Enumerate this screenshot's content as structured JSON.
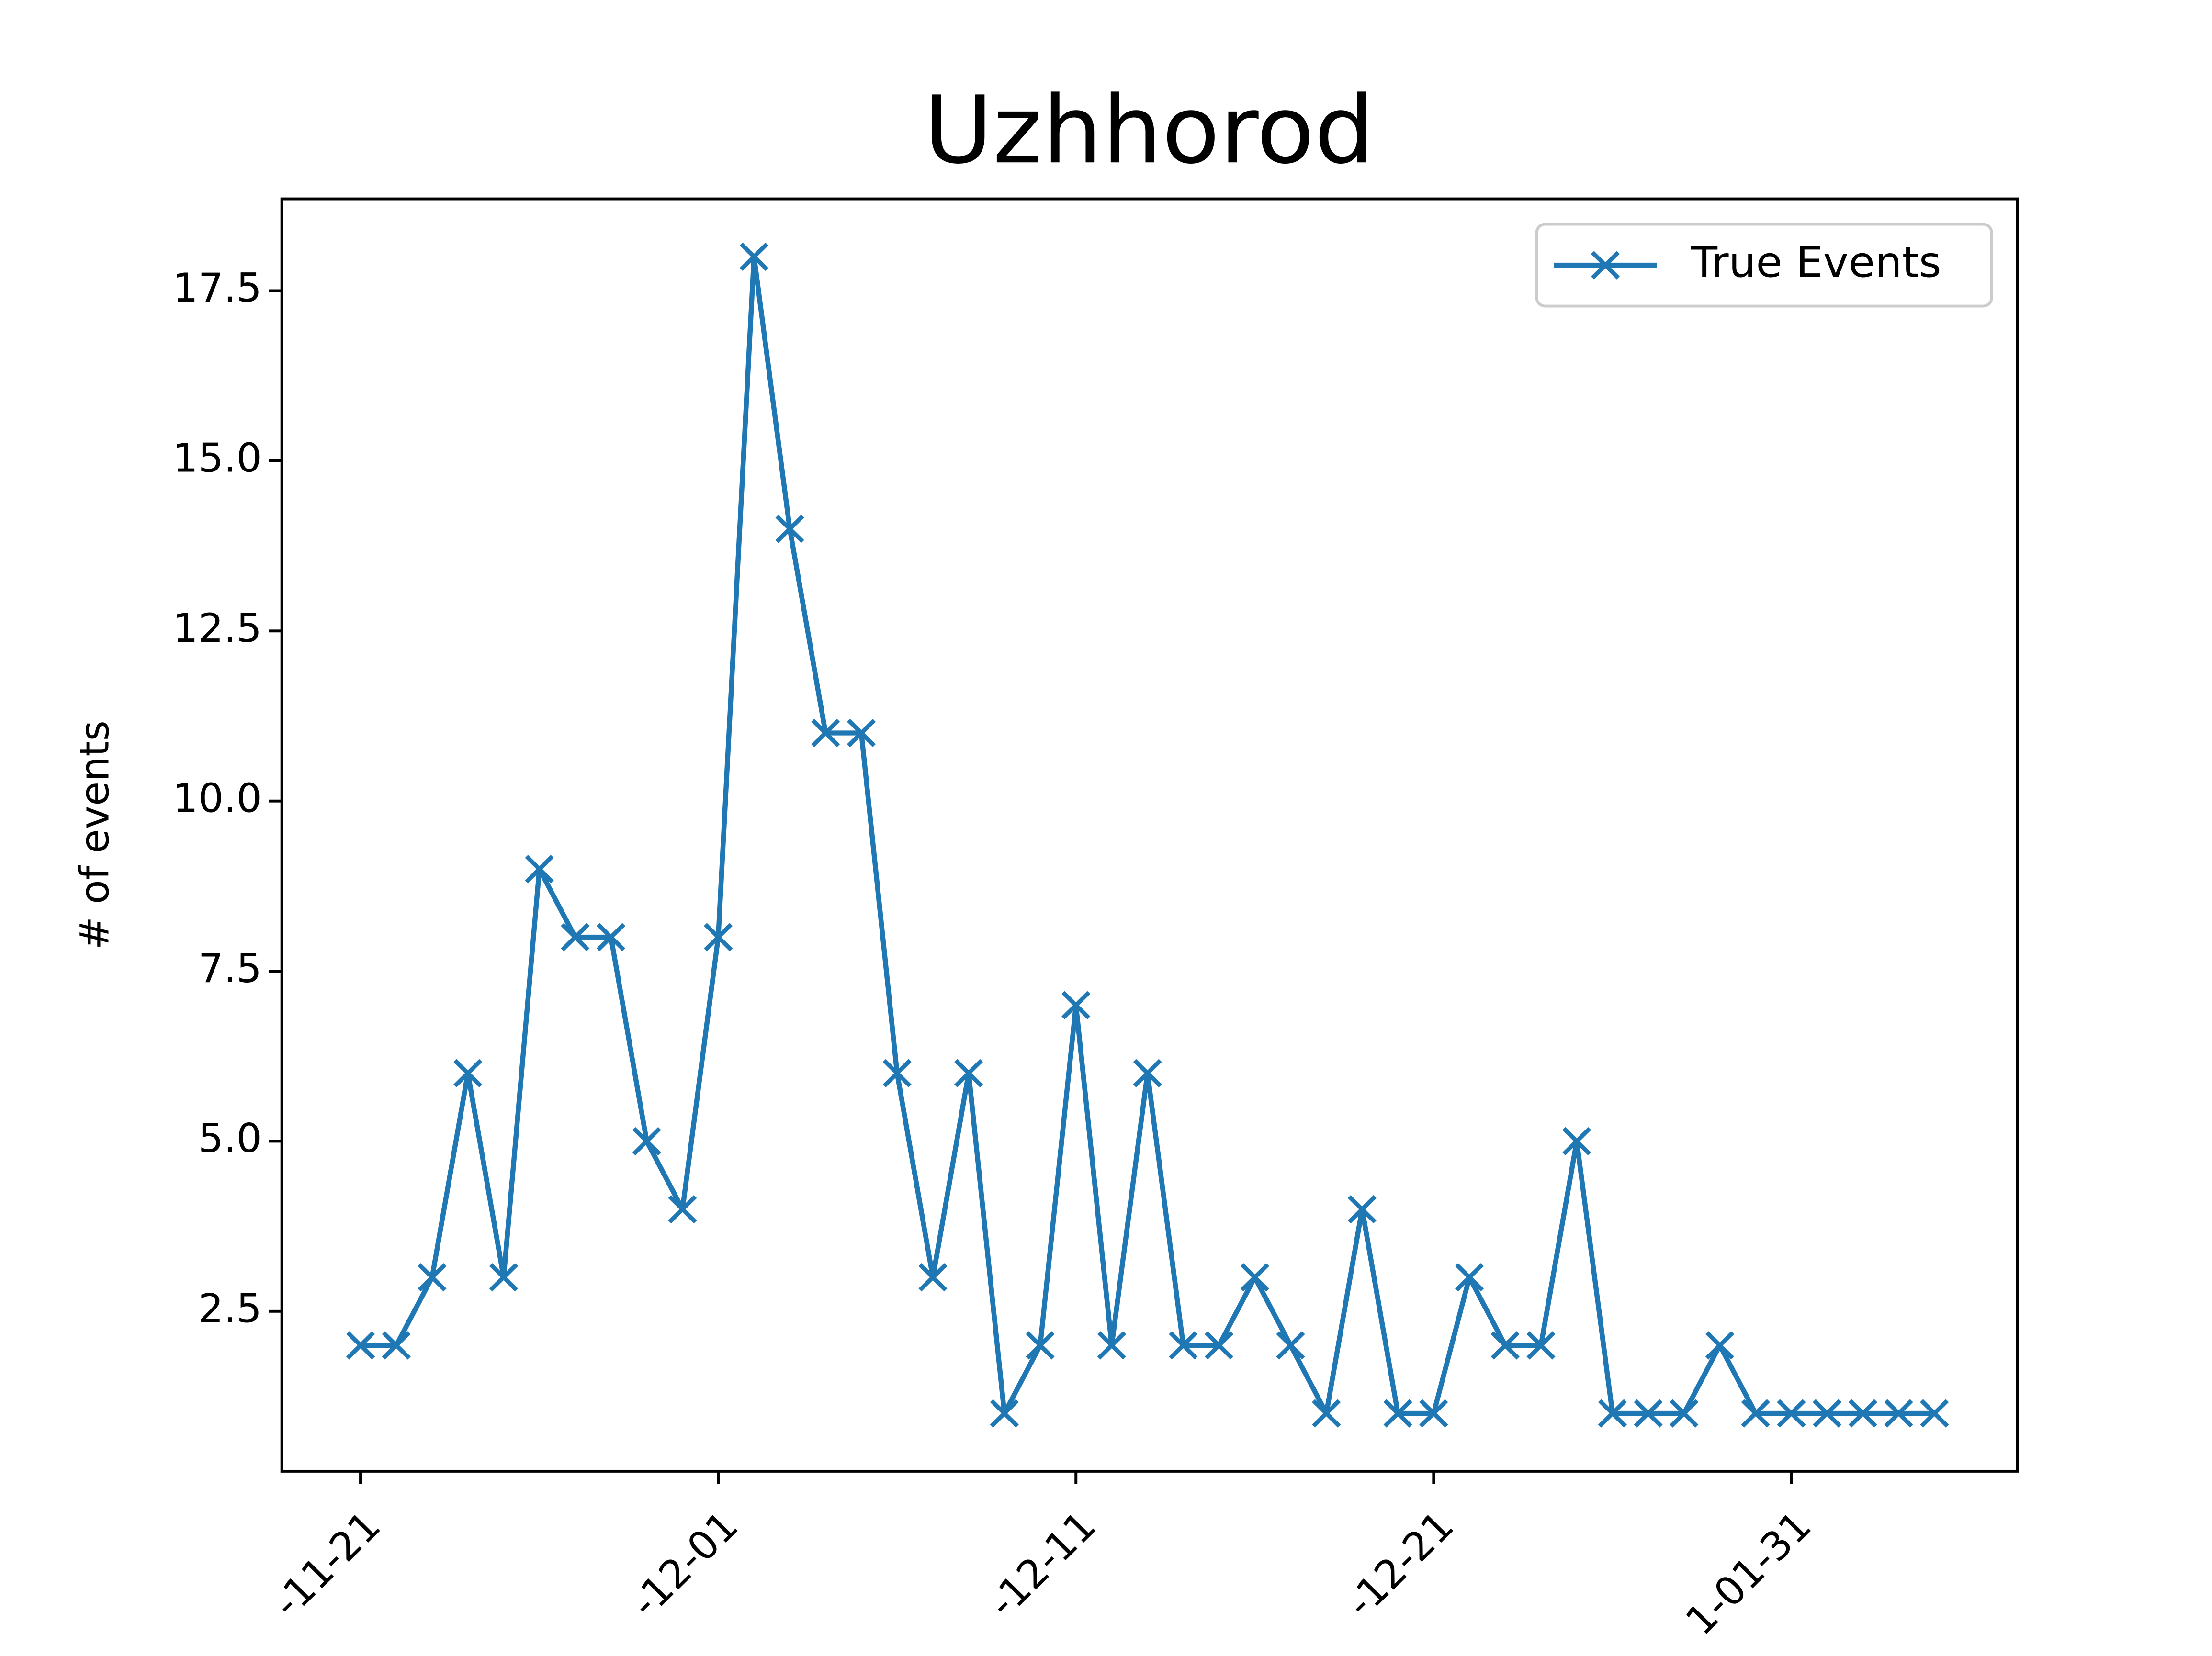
{
  "chart_data": {
    "type": "line",
    "title": "Uzhhorod",
    "y_label": "# of events",
    "categories": [
      "-11-21",
      null,
      null,
      null,
      null,
      null,
      null,
      null,
      null,
      null,
      "-12-01",
      null,
      null,
      null,
      null,
      null,
      null,
      null,
      null,
      null,
      "-12-11",
      null,
      null,
      null,
      null,
      null,
      null,
      null,
      null,
      null,
      "-12-21",
      null,
      null,
      null,
      null,
      null,
      null,
      null,
      null,
      null,
      "1-01-31",
      null,
      null,
      null,
      null
    ],
    "series": [
      {
        "name": "True Events",
        "color": "#1f77b4",
        "values": [
          2,
          2,
          3,
          6,
          3,
          9,
          8,
          8,
          5,
          4,
          8,
          18,
          14,
          11,
          11,
          6,
          3,
          6,
          1,
          2,
          7,
          2,
          6,
          2,
          2,
          3,
          2,
          1,
          4,
          1,
          1,
          3,
          2,
          2,
          5,
          1,
          1,
          1,
          2,
          1,
          1,
          1,
          1,
          1,
          1
        ]
      }
    ],
    "ylim": [
      0.15,
      18.85
    ],
    "yticks": [
      2.5,
      {
        "value": 5,
        "label": "5.0"
      },
      7.5,
      {
        "value": 10,
        "label": "10.0"
      },
      12.5,
      {
        "value": 15,
        "label": "15.0"
      },
      17.5
    ],
    "legend": "upper right",
    "grid": false,
    "marker": "x"
  }
}
